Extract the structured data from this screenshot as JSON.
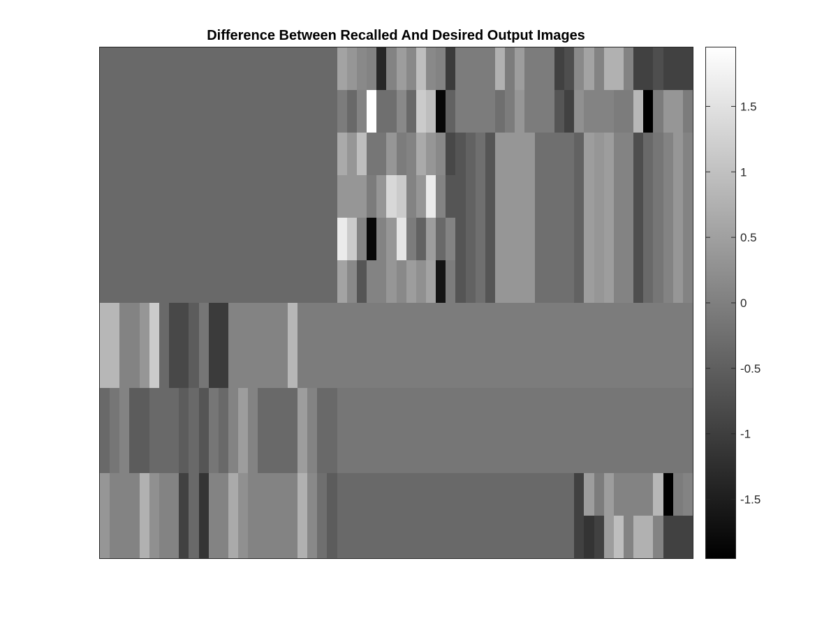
{
  "chart_data": {
    "type": "heatmap",
    "title": "Difference Between Recalled And Desired Output Images",
    "colormap": "gray",
    "color_limits": [
      -1.95,
      1.95
    ],
    "axes_ticks_visible": false,
    "grid": false,
    "n_rows": 12,
    "n_cols": 60,
    "row_groups": [
      {
        "rows": [
          0,
          1
        ],
        "values": [
          0.35,
          0.05,
          0.05,
          0.05,
          0.75,
          0.25,
          0.05,
          0.05,
          -0.95,
          -0.35,
          -1.15,
          0.05,
          0.05,
          0.65,
          0.25,
          0.05,
          0.05,
          0.05,
          0.05,
          0.05,
          0.75,
          0.15,
          -0.25,
          -0.55,
          0.35,
          0.35,
          0.35,
          0.05,
          0.05,
          -0.15,
          -0.15,
          -0.15,
          -0.15,
          -0.15,
          -0.15,
          -0.15,
          -0.15,
          -0.15,
          -0.15,
          -0.15,
          -0.15,
          -0.15,
          -0.15,
          -0.15,
          -0.15,
          -0.15,
          -0.15,
          -0.15,
          -0.15,
          -0.15,
          -0.15,
          -0.15,
          -0.15,
          -0.15,
          -0.15,
          -0.15,
          -0.15,
          -0.15,
          -0.15,
          -0.15
        ]
      },
      {
        "rows": [
          2,
          5
        ],
        "values": [
          -0.35,
          -0.15,
          0.05,
          -0.55,
          -0.55,
          -0.35,
          -0.35,
          -0.35,
          -0.55,
          -0.35,
          -0.65,
          -0.15,
          -0.35,
          0.05,
          0.45,
          0.05,
          -0.35,
          -0.35,
          -0.35,
          -0.35,
          0.45,
          0.05,
          -0.35,
          -0.35,
          0.35,
          0.35,
          0.35,
          0.35,
          0.35,
          0.35,
          0.35,
          0.35,
          0.35,
          0.35,
          0.35,
          0.35,
          -0.65,
          -0.45,
          -0.25,
          -0.65,
          0.35,
          0.35,
          0.35,
          0.35,
          -0.25,
          -0.25,
          -0.25,
          -0.25,
          -0.45,
          0.45,
          0.35,
          0.45,
          0.05,
          0.05,
          -0.75,
          -0.35,
          -0.15,
          0.05,
          0.35,
          0.05
        ]
      },
      {
        "rows": [
          6,
          7
        ],
        "values": [
          0.85,
          0.85,
          0.05,
          0.05,
          0.35,
          1.15,
          -0.35,
          -0.85,
          -0.85,
          -0.55,
          -0.15,
          -1.05,
          -1.05,
          0.05,
          0.05,
          0.05,
          0.05,
          0.05,
          0.05,
          0.85,
          -0.05,
          -0.05,
          -0.05,
          -0.05,
          -0.05,
          -0.05,
          -0.05,
          -0.05,
          -0.05,
          -0.05,
          -0.05,
          -0.05,
          -0.05,
          -0.05,
          -0.05,
          -0.05,
          -0.05,
          -0.05,
          -0.05,
          -0.05,
          -0.05,
          -0.05,
          -0.05,
          -0.05,
          -0.05,
          -0.05,
          -0.05,
          -0.05,
          -0.05,
          -0.05,
          -0.05,
          -0.05,
          -0.05,
          -0.05,
          -0.05,
          -0.05,
          -0.05,
          -0.05,
          -0.05,
          -0.05
        ]
      },
      {
        "rows": [
          8,
          9
        ],
        "values": [
          -0.35,
          -0.15,
          0.05,
          -0.55,
          -0.55,
          -0.35,
          -0.35,
          -0.35,
          -0.55,
          -0.35,
          -0.65,
          -0.15,
          -0.35,
          0.05,
          0.45,
          0.05,
          -0.35,
          -0.35,
          -0.35,
          -0.35,
          0.45,
          0.05,
          -0.35,
          -0.35,
          -0.15,
          -0.15,
          -0.15,
          -0.15,
          -0.15,
          -0.15,
          -0.15,
          -0.15,
          -0.15,
          -0.15,
          -0.15,
          -0.15,
          -0.15,
          -0.15,
          -0.15,
          -0.15,
          -0.15,
          -0.15,
          -0.15,
          -0.15,
          -0.15,
          -0.15,
          -0.15,
          -0.15,
          -0.15,
          -0.15,
          -0.15,
          -0.15,
          -0.15,
          -0.15,
          -0.15,
          -0.15,
          -0.15,
          -0.15,
          -0.15,
          -0.15
        ]
      },
      {
        "rows": [
          10,
          11
        ],
        "values": [
          0.35,
          0.05,
          0.05,
          0.05,
          0.75,
          0.25,
          0.05,
          0.05,
          -0.95,
          -0.35,
          -1.15,
          0.05,
          0.05,
          0.65,
          0.25,
          0.05,
          0.05,
          0.05,
          0.05,
          0.05,
          0.75,
          0.15,
          -0.25,
          -0.55,
          -0.35,
          -0.35,
          -0.35,
          -0.35,
          -0.35,
          -0.35,
          -0.35,
          -0.35,
          -0.35,
          -0.35,
          -0.35,
          -0.35,
          -0.35,
          -0.35,
          -0.35,
          -0.35,
          -0.35,
          -0.35,
          -0.35,
          -0.35,
          -0.35,
          -0.35,
          -0.35,
          -0.35,
          -0.35,
          -0.35,
          -0.35,
          -0.35,
          -0.35,
          -0.35,
          -0.35,
          -0.35,
          -0.35,
          -0.35,
          -0.35,
          -0.35
        ]
      }
    ],
    "region_overrides": [
      {
        "row": 0,
        "values": [
          -0.35,
          -0.35,
          -0.35,
          -0.35,
          -0.35,
          -0.35,
          -0.35,
          -0.35,
          -0.35,
          -0.35,
          -0.35,
          -0.35,
          -0.35,
          -0.35,
          -0.35,
          -0.35,
          -0.35,
          -0.35,
          -0.35,
          -0.35,
          -0.35,
          -0.35,
          -0.35,
          -0.35,
          0.55,
          0.35,
          0.15,
          0.05,
          -1.35,
          0.05,
          0.45,
          0.15,
          0.95,
          0.15,
          0.05,
          -1.05,
          -0.05,
          -0.05,
          -0.05,
          -0.05,
          0.75,
          -0.05,
          0.45,
          -0.05,
          -0.05,
          -0.05,
          -0.95,
          -0.75,
          0.15,
          0.55,
          0.05,
          0.75,
          0.75,
          0.05,
          -0.95,
          -0.95,
          -0.75,
          -0.95,
          -0.95,
          -0.95
        ]
      },
      {
        "row": 1,
        "values": [
          -0.35,
          -0.35,
          -0.35,
          -0.35,
          -0.35,
          -0.35,
          -0.35,
          -0.35,
          -0.35,
          -0.35,
          -0.35,
          -0.35,
          -0.35,
          -0.35,
          -0.35,
          -0.35,
          -0.35,
          -0.35,
          -0.35,
          -0.35,
          -0.35,
          -0.35,
          -0.35,
          -0.35,
          -0.05,
          -0.35,
          0.05,
          1.95,
          -0.25,
          -0.25,
          0.15,
          -0.35,
          1.15,
          0.95,
          -1.85,
          -0.45,
          -0.05,
          -0.05,
          -0.05,
          -0.05,
          -0.25,
          -0.05,
          0.35,
          -0.05,
          -0.05,
          -0.05,
          -0.65,
          -0.95,
          0.25,
          0.05,
          0.05,
          0.05,
          -0.05,
          -0.05,
          0.85,
          -1.95,
          -0.05,
          0.35,
          0.35,
          -0.05
        ]
      },
      {
        "row": 2,
        "values": [
          -0.35,
          -0.35,
          -0.35,
          -0.35,
          -0.35,
          -0.35,
          -0.35,
          -0.35,
          -0.35,
          -0.35,
          -0.35,
          -0.35,
          -0.35,
          -0.35,
          -0.35,
          -0.35,
          -0.35,
          -0.35,
          -0.35,
          -0.35,
          -0.35,
          -0.35,
          -0.35,
          -0.35,
          0.65,
          0.35,
          0.95,
          -0.15,
          -0.15,
          0.35,
          -0.05,
          0.05,
          0.65,
          0.35,
          0.15,
          -0.85,
          -0.65,
          -0.45,
          -0.25,
          -0.65,
          0.35,
          0.35,
          0.35,
          0.35,
          -0.25,
          -0.25,
          -0.25,
          -0.25,
          -0.45,
          0.45,
          0.35,
          0.45,
          0.05,
          0.05,
          -0.75,
          -0.35,
          -0.15,
          0.05,
          0.35,
          0.05
        ]
      },
      {
        "row": 3,
        "values": [
          -0.35,
          -0.35,
          -0.35,
          -0.35,
          -0.35,
          -0.35,
          -0.35,
          -0.35,
          -0.35,
          -0.35,
          -0.35,
          -0.35,
          -0.35,
          -0.35,
          -0.35,
          -0.35,
          -0.35,
          -0.35,
          -0.35,
          -0.35,
          -0.35,
          -0.35,
          -0.35,
          -0.35,
          0.35,
          0.35,
          0.35,
          -0.05,
          0.35,
          1.35,
          1.15,
          0.05,
          0.35,
          1.65,
          0.05,
          -0.65,
          -0.65,
          -0.45,
          -0.25,
          -0.65,
          0.35,
          0.35,
          0.35,
          0.35,
          -0.25,
          -0.25,
          -0.25,
          -0.25,
          -0.45,
          0.45,
          0.35,
          0.45,
          0.05,
          0.05,
          -0.75,
          -0.35,
          -0.15,
          0.05,
          0.35,
          0.05
        ]
      },
      {
        "row": 4,
        "values": [
          -0.35,
          -0.35,
          -0.35,
          -0.35,
          -0.35,
          -0.35,
          -0.35,
          -0.35,
          -0.35,
          -0.35,
          -0.35,
          -0.35,
          -0.35,
          -0.35,
          -0.35,
          -0.35,
          -0.35,
          -0.35,
          -0.35,
          -0.35,
          -0.35,
          -0.35,
          -0.35,
          -0.35,
          1.65,
          1.15,
          0.05,
          -1.85,
          0.05,
          0.35,
          1.55,
          -0.05,
          -0.45,
          0.45,
          -0.35,
          0.05,
          -0.65,
          -0.45,
          -0.25,
          -0.65,
          0.35,
          0.35,
          0.35,
          0.35,
          -0.25,
          -0.25,
          -0.25,
          -0.25,
          -0.45,
          0.45,
          0.35,
          0.45,
          0.05,
          0.05,
          -0.75,
          -0.35,
          -0.15,
          0.05,
          0.35,
          0.05
        ]
      },
      {
        "row": 5,
        "values": [
          -0.35,
          -0.35,
          -0.35,
          -0.35,
          -0.35,
          -0.35,
          -0.35,
          -0.35,
          -0.35,
          -0.35,
          -0.35,
          -0.35,
          -0.35,
          -0.35,
          -0.35,
          -0.35,
          -0.35,
          -0.35,
          -0.35,
          -0.35,
          -0.35,
          -0.35,
          -0.35,
          -0.35,
          0.55,
          0.15,
          -0.65,
          0.05,
          0.05,
          0.35,
          0.15,
          0.45,
          0.25,
          0.55,
          -1.65,
          -0.05,
          -0.65,
          -0.45,
          -0.25,
          -0.65,
          0.35,
          0.35,
          0.35,
          0.35,
          -0.25,
          -0.25,
          -0.25,
          -0.25,
          -0.45,
          0.45,
          0.35,
          0.45,
          0.05,
          0.05,
          -0.75,
          -0.35,
          -0.15,
          0.05,
          0.35,
          0.05
        ]
      },
      {
        "row": 10,
        "values": [
          0.35,
          0.05,
          0.05,
          0.05,
          0.75,
          0.25,
          0.05,
          0.05,
          -0.95,
          -0.35,
          -1.15,
          0.05,
          0.05,
          0.65,
          0.25,
          0.05,
          0.05,
          0.05,
          0.05,
          0.05,
          0.75,
          0.15,
          -0.25,
          -0.55,
          -0.35,
          -0.35,
          -0.35,
          -0.35,
          -0.35,
          -0.35,
          -0.35,
          -0.35,
          -0.35,
          -0.35,
          -0.35,
          -0.35,
          -0.35,
          -0.35,
          -0.35,
          -0.35,
          -0.35,
          -0.35,
          -0.35,
          -0.35,
          -0.35,
          -0.35,
          -0.35,
          -0.35,
          -0.95,
          0.45,
          -0.05,
          0.45,
          0.05,
          0.05,
          0.05,
          0.05,
          0.85,
          -1.95,
          -0.05,
          0.05
        ]
      },
      {
        "row": 11,
        "values": [
          0.35,
          0.05,
          0.05,
          0.05,
          0.75,
          0.25,
          0.05,
          0.05,
          -0.95,
          -0.35,
          -1.15,
          0.05,
          0.05,
          0.65,
          0.25,
          0.05,
          0.05,
          0.05,
          0.05,
          0.05,
          0.75,
          0.15,
          -0.25,
          -0.55,
          -0.35,
          -0.35,
          -0.35,
          -0.35,
          -0.35,
          -0.35,
          -0.35,
          -0.35,
          -0.35,
          -0.35,
          -0.35,
          -0.35,
          -0.35,
          -0.35,
          -0.35,
          -0.35,
          -0.35,
          -0.35,
          -0.35,
          -0.35,
          -0.35,
          -0.35,
          -0.35,
          -0.35,
          -0.95,
          -1.15,
          -0.95,
          0.45,
          0.95,
          0.05,
          0.75,
          0.75,
          0.05,
          -0.95,
          -0.95,
          -0.95
        ]
      }
    ],
    "colorbar": {
      "ticks": [
        1.5,
        1,
        0.5,
        0,
        -0.5,
        -1,
        -1.5
      ],
      "tick_labels": [
        "1.5",
        "1",
        "0.5",
        "0",
        "-0.5",
        "-1",
        "-1.5"
      ],
      "range": [
        -1.95,
        1.95
      ]
    }
  }
}
